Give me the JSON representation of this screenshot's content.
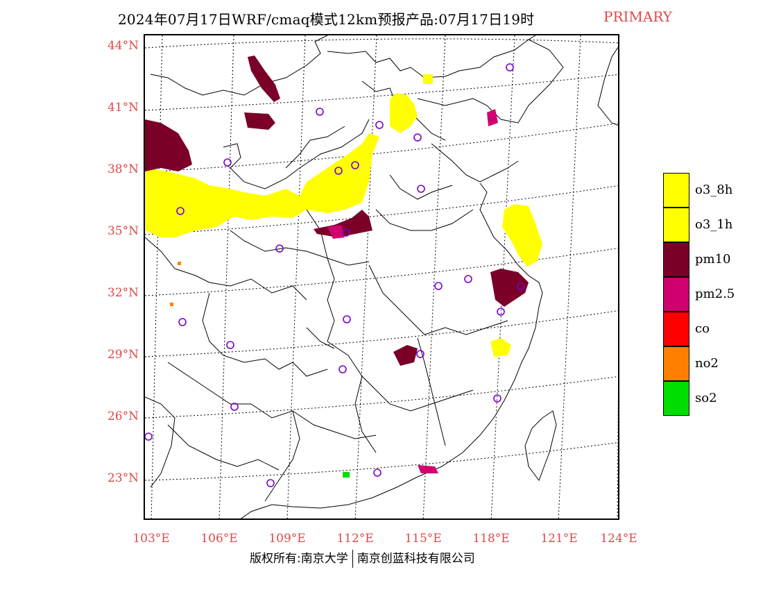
{
  "title": {
    "main": "2024年07月17日WRF/cmaq模式12km预报产品:07月17日19时",
    "tag": "PRIMARY"
  },
  "axes": {
    "latitude_labels": [
      "44°N",
      "41°N",
      "38°N",
      "35°N",
      "32°N",
      "29°N",
      "26°N",
      "23°N"
    ],
    "longitude_labels": [
      "103°E",
      "106°E",
      "109°E",
      "112°E",
      "115°E",
      "118°E",
      "121°E",
      "124°E"
    ]
  },
  "legend": [
    {
      "label": "o3_8h",
      "color": "#ffff00"
    },
    {
      "label": "o3_1h",
      "color": "#ffff00"
    },
    {
      "label": "pm10",
      "color": "#7a0028"
    },
    {
      "label": "pm2.5",
      "color": "#d0006f"
    },
    {
      "label": "co",
      "color": "#ff0000"
    },
    {
      "label": "no2",
      "color": "#ff8000"
    },
    {
      "label": "so2",
      "color": "#00dd00"
    }
  ],
  "copyright": {
    "left": "版权所有:南京大学",
    "right": "南京创蓝科技有限公司"
  },
  "colors": {
    "label_red": "#e04848",
    "station_marker": "#7a00c8"
  }
}
